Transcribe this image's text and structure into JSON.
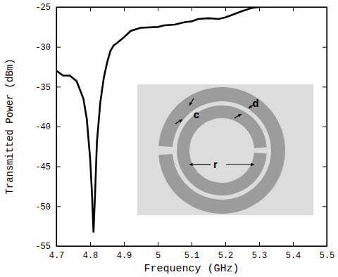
{
  "chart_data": {
    "type": "line",
    "xlabel": "Frequency (GHz)",
    "ylabel": "Transmitted Power (dBm)",
    "x": [
      4.7,
      4.72,
      4.74,
      4.76,
      4.78,
      4.79,
      4.8,
      4.805,
      4.81,
      4.815,
      4.82,
      4.83,
      4.84,
      4.85,
      4.86,
      4.87,
      4.88,
      4.9,
      4.92,
      4.95,
      5.0,
      5.02,
      5.05,
      5.08,
      5.1,
      5.12,
      5.15,
      5.18,
      5.2,
      5.22,
      5.25,
      5.28,
      5.3
    ],
    "values": [
      -33,
      -33.6,
      -33.6,
      -34.3,
      -36.5,
      -39,
      -44,
      -48,
      -53.3,
      -48,
      -42,
      -37,
      -34,
      -32,
      -30.5,
      -29.8,
      -29.5,
      -28.8,
      -28,
      -27.6,
      -27.5,
      -27.3,
      -27.2,
      -26.9,
      -26.8,
      -26.5,
      -26.4,
      -26.5,
      -26.3,
      -26.0,
      -25.5,
      -25.1,
      -25.0
    ],
    "color": "#000000",
    "xlim": [
      4.7,
      5.5
    ],
    "xticks": [
      4.7,
      4.8,
      4.9,
      5,
      5.1,
      5.2,
      5.3,
      5.4,
      5.5
    ],
    "ylim": [
      -55,
      -25
    ],
    "yticks": [
      -55,
      -50,
      -45,
      -40,
      -35,
      -30,
      -25
    ],
    "grid": false,
    "annotations": [
      {
        "text": "c"
      },
      {
        "text": "d"
      },
      {
        "text": "r"
      }
    ]
  }
}
